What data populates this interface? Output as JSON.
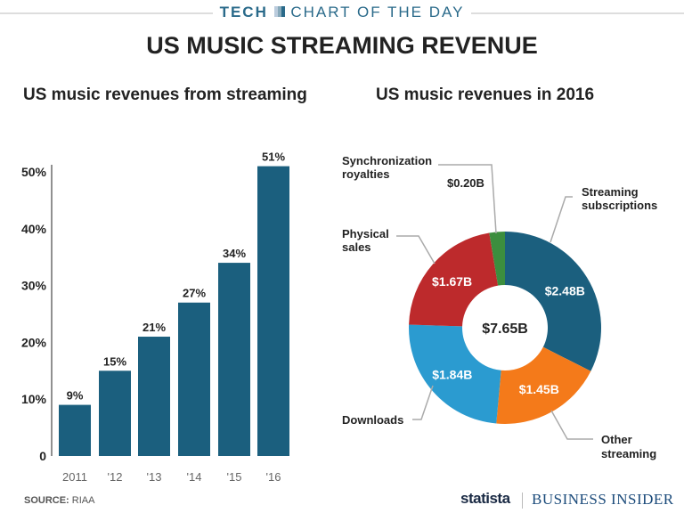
{
  "header": {
    "kicker_bold": "TECH",
    "kicker": "CHART OF THE DAY",
    "title": "US MUSIC STREAMING REVENUE"
  },
  "footer": {
    "source_label": "SOURCE:",
    "source": "RIAA",
    "brand1": "statista",
    "brand2": "BUSINESS INSIDER"
  },
  "colors": {
    "bar": "#1b5f7e",
    "accent": "#2a6a8a"
  },
  "chart_data": [
    {
      "type": "bar",
      "title": "US music revenues from streaming",
      "categories": [
        "2011",
        "'12",
        "'13",
        "'14",
        "'15",
        "'16"
      ],
      "values": [
        9,
        15,
        21,
        27,
        34,
        51
      ],
      "data_labels": [
        "9%",
        "15%",
        "21%",
        "27%",
        "34%",
        "51%"
      ],
      "yticks": [
        "0",
        "10%",
        "20%",
        "30%",
        "40%",
        "50%"
      ],
      "ylim": [
        0,
        50
      ],
      "grid": false
    },
    {
      "type": "pie",
      "title": "US music revenues in 2016",
      "donut": true,
      "center_label": "$7.65B",
      "slices": [
        {
          "name": "Streaming subscriptions",
          "value": 2.48,
          "label": "$2.48B",
          "color": "#1b5f7e"
        },
        {
          "name": "Other streaming",
          "value": 1.45,
          "label": "$1.45B",
          "color": "#f47a1a"
        },
        {
          "name": "Downloads",
          "value": 1.84,
          "label": "$1.84B",
          "color": "#2b9bd0"
        },
        {
          "name": "Physical sales",
          "value": 1.67,
          "label": "$1.67B",
          "color": "#bd2a2c"
        },
        {
          "name": "Synchronization royalties",
          "value": 0.2,
          "label": "$0.20B",
          "color": "#3c8e3e"
        }
      ]
    }
  ]
}
